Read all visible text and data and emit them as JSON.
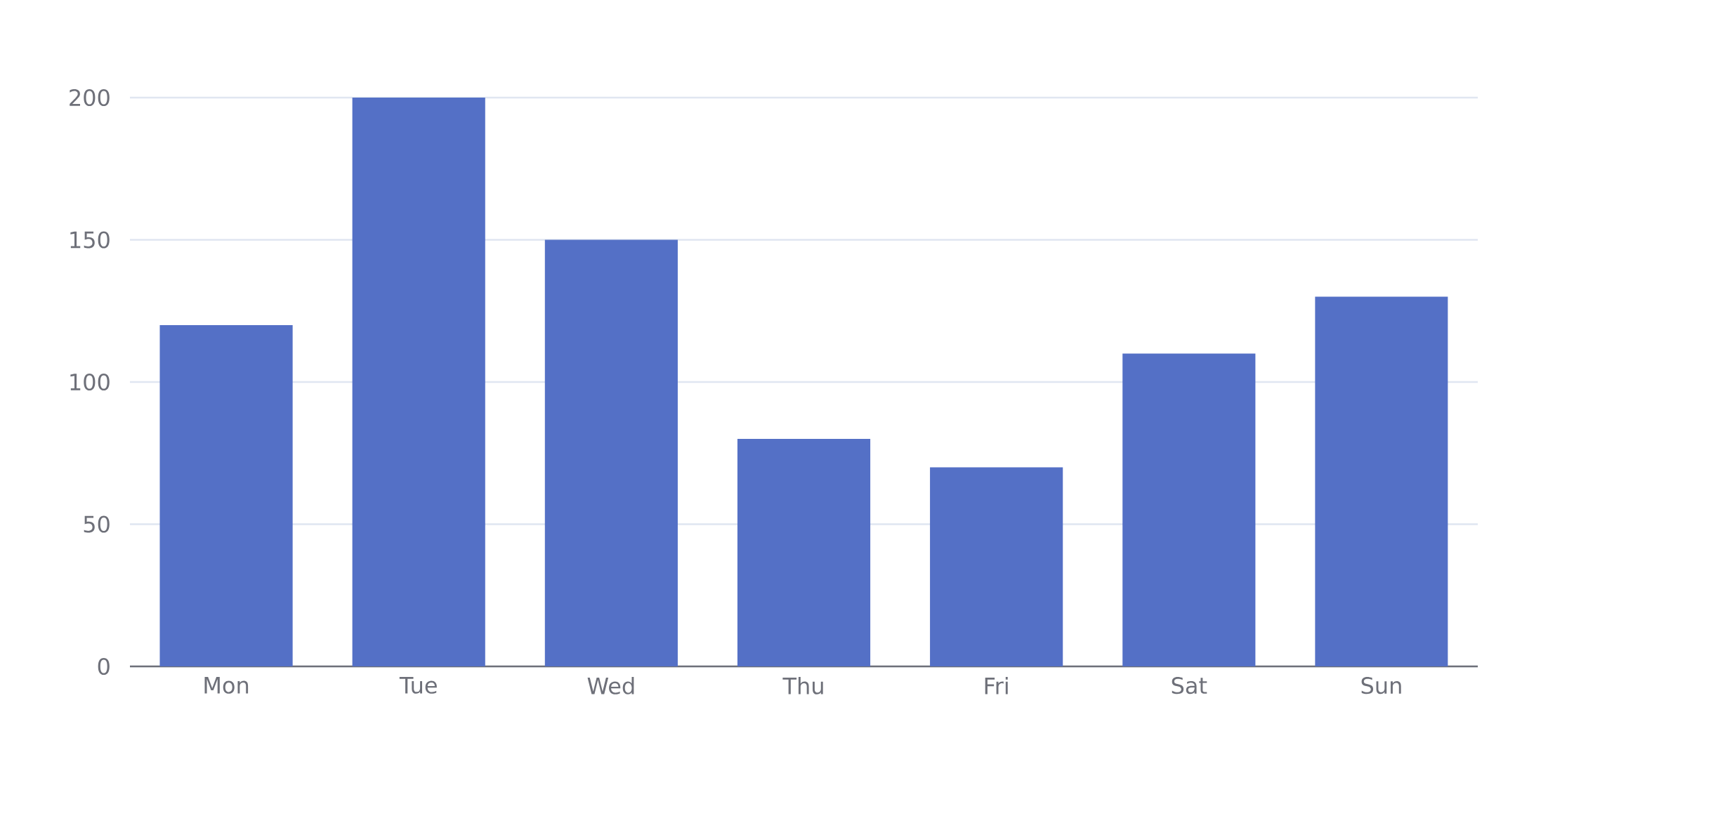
{
  "chart_data": {
    "type": "bar",
    "categories": [
      "Mon",
      "Tue",
      "Wed",
      "Thu",
      "Fri",
      "Sat",
      "Sun"
    ],
    "values": [
      120,
      200,
      150,
      80,
      70,
      110,
      130
    ],
    "color": "#5470c6",
    "ylim": [
      0,
      200
    ],
    "yticks": [
      0,
      50,
      100,
      150,
      200
    ],
    "grid": "y"
  }
}
